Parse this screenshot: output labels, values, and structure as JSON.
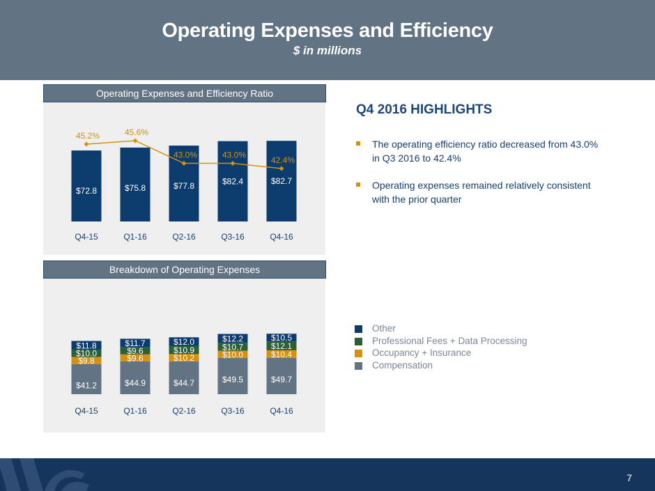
{
  "header": {
    "title": "Operating Expenses and Efficiency",
    "subtitle": "$ in millions"
  },
  "panel1": {
    "title": "Operating Expenses and Efficiency Ratio"
  },
  "panel2": {
    "title": "Breakdown of Operating Expenses"
  },
  "highlights": {
    "title": "Q4 2016 HIGHLIGHTS",
    "bullets": [
      "The operating efficiency ratio decreased from 43.0% in Q3 2016 to 42.4%",
      "Operating expenses remained relatively consistent with the prior quarter"
    ]
  },
  "legend": {
    "items": [
      {
        "label": "Other",
        "color": "#0b3c6d"
      },
      {
        "label": "Professional Fees + Data Processing",
        "color": "#2a5f37"
      },
      {
        "label": "Occupancy + Insurance",
        "color": "#d4900e"
      },
      {
        "label": "Compensation",
        "color": "#627384"
      }
    ]
  },
  "page_number": "7",
  "chart_data": [
    {
      "type": "bar",
      "title": "Operating Expenses and Efficiency Ratio",
      "categories": [
        "Q4-15",
        "Q1-16",
        "Q2-16",
        "Q3-16",
        "Q4-16"
      ],
      "series": [
        {
          "name": "Operating Expenses",
          "kind": "bar",
          "values": [
            72.8,
            75.8,
            77.8,
            82.4,
            82.7
          ],
          "labels": [
            "$72.8",
            "$75.8",
            "$77.8",
            "$82.4",
            "$82.7"
          ],
          "color": "#0b3c6d"
        },
        {
          "name": "Efficiency Ratio",
          "kind": "line",
          "values": [
            45.2,
            45.6,
            43.0,
            43.0,
            42.4
          ],
          "labels": [
            "45.2%",
            "45.6%",
            "43.0%",
            "43.0%",
            "42.4%"
          ],
          "color": "#d4900e"
        }
      ],
      "ylim": [
        0,
        85
      ]
    },
    {
      "type": "bar",
      "stacked": true,
      "title": "Breakdown of Operating Expenses",
      "categories": [
        "Q4-15",
        "Q1-16",
        "Q2-16",
        "Q3-16",
        "Q4-16"
      ],
      "series": [
        {
          "name": "Compensation",
          "values": [
            41.2,
            44.9,
            44.7,
            49.5,
            49.7
          ],
          "labels": [
            "$41.2",
            "$44.9",
            "$44.7",
            "$49.5",
            "$49.7"
          ],
          "color": "#627384"
        },
        {
          "name": "Occupancy + Insurance",
          "values": [
            9.8,
            9.6,
            10.2,
            10.0,
            10.4
          ],
          "labels": [
            "$9.8",
            "$9.6",
            "$10.2",
            "$10.0",
            "$10.4"
          ],
          "color": "#d4900e"
        },
        {
          "name": "Professional Fees + Data Processing",
          "values": [
            10.0,
            9.6,
            10.9,
            10.7,
            12.1
          ],
          "labels": [
            "$10.0",
            "$9.6",
            "$10.9",
            "$10.7",
            "$12.1"
          ],
          "color": "#2a5f37"
        },
        {
          "name": "Other",
          "values": [
            11.8,
            11.7,
            12.0,
            12.2,
            10.5
          ],
          "labels": [
            "$11.8",
            "$11.7",
            "$12.0",
            "$12.2",
            "$10.5"
          ],
          "color": "#0b3c6d"
        }
      ],
      "ylim": [
        0,
        85
      ]
    }
  ]
}
